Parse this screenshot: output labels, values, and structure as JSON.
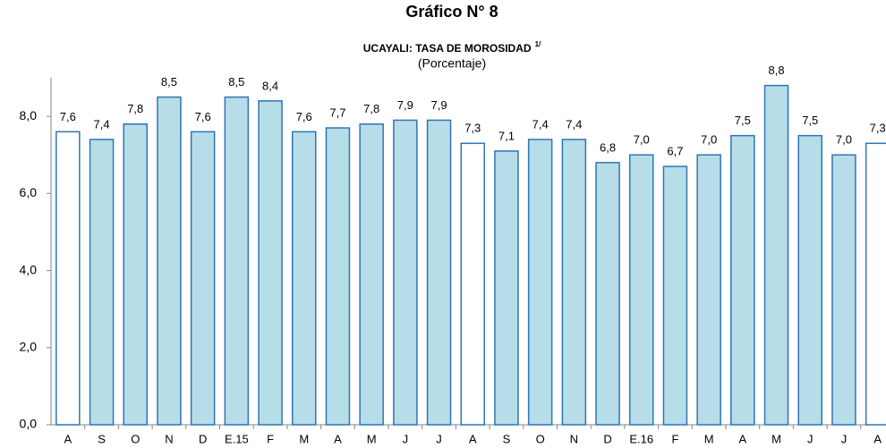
{
  "chart_data": {
    "type": "bar",
    "title": "Gráfico N° 8",
    "subtitle": "UCAYALI: TASA DE MOROSIDAD",
    "subtitle_note": "1/",
    "unit_label": "(Porcentaje)",
    "categories": [
      "A",
      "S",
      "O",
      "N",
      "D",
      "E.15",
      "F",
      "M",
      "A",
      "M",
      "J",
      "J",
      "A",
      "S",
      "O",
      "N",
      "D",
      "E.16",
      "F",
      "M",
      "A",
      "M",
      "J",
      "J",
      "A"
    ],
    "values": [
      7.6,
      7.4,
      7.8,
      8.5,
      7.6,
      8.5,
      8.4,
      7.6,
      7.7,
      7.8,
      7.9,
      7.9,
      7.3,
      7.1,
      7.4,
      7.4,
      6.8,
      7.0,
      6.7,
      7.0,
      7.5,
      8.8,
      7.5,
      7.0,
      7.3
    ],
    "value_labels": [
      "7,6",
      "7,4",
      "7,8",
      "8,5",
      "7,6",
      "8,5",
      "8,4",
      "7,6",
      "7,7",
      "7,8",
      "7,9",
      "7,9",
      "7,3",
      "7,1",
      "7,4",
      "7,4",
      "6,8",
      "7,0",
      "6,7",
      "7,0",
      "7,5",
      "8,8",
      "7,5",
      "7,0",
      "7,3"
    ],
    "colors": [
      "#ffffff",
      "#b7dde8",
      "#b7dde8",
      "#b7dde8",
      "#b7dde8",
      "#b7dde8",
      "#b7dde8",
      "#b7dde8",
      "#b7dde8",
      "#b7dde8",
      "#b7dde8",
      "#b7dde8",
      "#ffffff",
      "#b7dde8",
      "#b7dde8",
      "#b7dde8",
      "#b7dde8",
      "#b7dde8",
      "#b7dde8",
      "#b7dde8",
      "#b7dde8",
      "#b7dde8",
      "#b7dde8",
      "#b7dde8",
      "#ffffff"
    ],
    "edge_color": "#2e75b6",
    "ylim": [
      0,
      9
    ],
    "yticks": [
      {
        "value": 0,
        "label": "0,0"
      },
      {
        "value": 2,
        "label": "2,0"
      },
      {
        "value": 4,
        "label": "4,0"
      },
      {
        "value": 6,
        "label": "6,0"
      },
      {
        "value": 8,
        "label": "8,0"
      }
    ],
    "grid": false
  }
}
